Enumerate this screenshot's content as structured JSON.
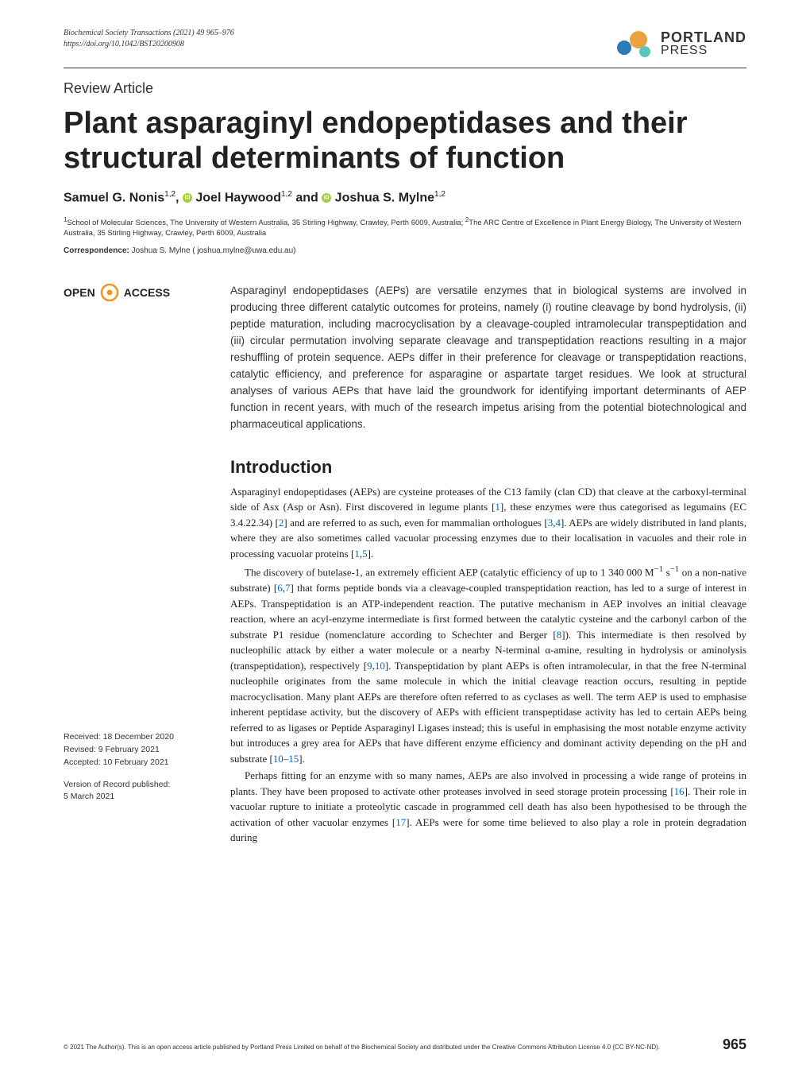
{
  "journal": {
    "citation": "Biochemical Society Transactions (2021) 49 965–976",
    "doi": "https://doi.org/10.1042/BST20200908"
  },
  "logo": {
    "portland": "PORTLAND",
    "press": "PRESS"
  },
  "article_type": "Review Article",
  "title": "Plant asparaginyl endopeptidases and their structural determinants of function",
  "authors_html": "Samuel G. Nonis<sup>1,2</sup>, <span class='orcid-icon' data-name='orcid-icon' data-interactable='false'></span> Joel Haywood<sup>1,2</sup> and <span class='orcid-icon' data-name='orcid-icon' data-interactable='false'></span> Joshua S. Mylne<sup>1,2</sup>",
  "affiliations": "<sup>1</sup>School of Molecular Sciences, The University of Western Australia, 35 Stirling Highway, Crawley, Perth 6009, Australia; <sup>2</sup>The ARC Centre of Excellence in Plant Energy Biology, The University of Western Australia, 35 Stirling Highway, Crawley, Perth 6009, Australia",
  "correspondence": {
    "label": "Correspondence:",
    "text": " Joshua S. Mylne ( joshua.mylne@uwa.edu.au)"
  },
  "open_access": {
    "open": "OPEN",
    "access": "ACCESS"
  },
  "dates": {
    "received": "Received: 18 December 2020",
    "revised": "Revised: 9 February 2021",
    "accepted": "Accepted: 10 February 2021",
    "published_label": "Version of Record published:",
    "published_date": "5 March 2021"
  },
  "abstract": "Asparaginyl endopeptidases (AEPs) are versatile enzymes that in biological systems are involved in producing three different catalytic outcomes for proteins, namely (i) routine cleavage by bond hydrolysis, (ii) peptide maturation, including macrocyclisation by a cleavage-coupled intramolecular transpeptidation and (iii) circular permutation involving separate cleavage and transpeptidation reactions resulting in a major reshuffling of protein sequence. AEPs differ in their preference for cleavage or transpeptidation reactions, catalytic efficiency, and preference for asparagine or aspartate target residues. We look at structural analyses of various AEPs that have laid the groundwork for identifying important determinants of AEP function in recent years, with much of the research impetus arising from the potential biotechnological and pharmaceutical applications.",
  "section_heading": "Introduction",
  "body": {
    "p1": "Asparaginyl endopeptidases (AEPs) are cysteine proteases of the C13 family (clan CD) that cleave at the carboxyl-terminal side of Asx (Asp or Asn). First discovered in legume plants [<span class='ref-link'>1</span>], these enzymes were thus categorised as legumains (EC 3.4.22.34) [<span class='ref-link'>2</span>] and are referred to as such, even for mammalian orthologues [<span class='ref-link'>3</span>,<span class='ref-link'>4</span>]. AEPs are widely distributed in land plants, where they are also sometimes called vacuolar processing enzymes due to their localisation in vacuoles and their role in processing vacuolar proteins [<span class='ref-link'>1</span>,<span class='ref-link'>5</span>].",
    "p2": "The discovery of butelase-1, an extremely efficient AEP (catalytic efficiency of up to 1 340 000 M<sup>−1</sup> s<sup>−1</sup> on a non-native substrate) [<span class='ref-link'>6</span>,<span class='ref-link'>7</span>] that forms peptide bonds via a cleavage-coupled transpeptidation reaction, has led to a surge of interest in AEPs. Transpeptidation is an ATP-independent reaction. The putative mechanism in AEP involves an initial cleavage reaction, where an acyl-enzyme intermediate is first formed between the catalytic cysteine and the carbonyl carbon of the substrate P1 residue (nomenclature according to Schechter and Berger [<span class='ref-link'>8</span>]). This intermediate is then resolved by nucleophilic attack by either a water molecule or a nearby N-terminal α-amine, resulting in hydrolysis or aminolysis (transpeptidation), respectively [<span class='ref-link'>9</span>,<span class='ref-link'>10</span>]. Transpeptidation by plant AEPs is often intramolecular, in that the free N-terminal nucleophile originates from the same molecule in which the initial cleavage reaction occurs, resulting in peptide macrocyclisation. Many plant AEPs are therefore often referred to as cyclases as well. The term AEP is used to emphasise inherent peptidase activity, but the discovery of AEPs with efficient transpeptidase activity has led to certain AEPs being referred to as ligases or Peptide Asparaginyl Ligases instead; this is useful in emphasising the most notable enzyme activity but introduces a grey area for AEPs that have different enzyme efficiency and dominant activity depending on the pH and substrate [<span class='ref-link'>10</span>–<span class='ref-link'>15</span>].",
    "p3": "Perhaps fitting for an enzyme with so many names, AEPs are also involved in processing a wide range of proteins in plants. They have been proposed to activate other proteases involved in seed storage protein processing [<span class='ref-link'>16</span>]. Their role in vacuolar rupture to initiate a proteolytic cascade in programmed cell death has also been hypothesised to be through the activation of other vacuolar enzymes [<span class='ref-link'>17</span>]. AEPs were for some time believed to also play a role in protein degradation during"
  },
  "copyright": "© 2021 The Author(s). This is an open access article published by Portland Press Limited on behalf of the Biochemical Society and distributed under the Creative Commons Attribution License 4.0 (CC BY-NC-ND).",
  "page_number": "965",
  "colors": {
    "logo_blue": "#2b7bb9",
    "logo_orange": "#e8a33d",
    "logo_teal": "#5bc4bf",
    "ref_link": "#0066cc",
    "oa_orange": "#f7941e"
  }
}
